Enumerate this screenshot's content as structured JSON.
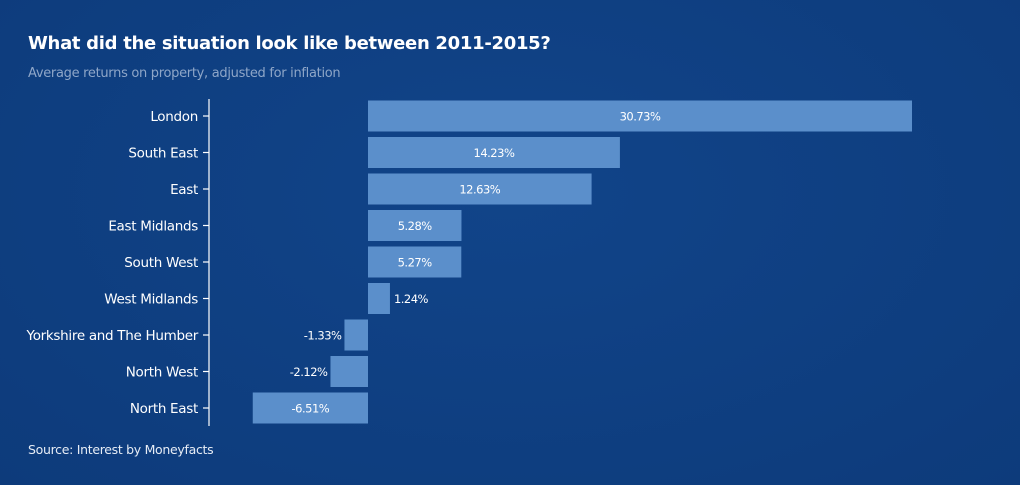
{
  "chart_data": {
    "type": "bar",
    "orientation": "horizontal",
    "title": "What did the situation look like between 2011-2015?",
    "subtitle": "Average returns on property, adjusted for inflation",
    "source": "Source: Interest by Moneyfacts",
    "categories": [
      "London",
      "South East",
      "East",
      "East Midlands",
      "South West",
      "West Midlands",
      "Yorkshire and The Humber",
      "North West",
      "North East"
    ],
    "values": [
      30.73,
      14.23,
      12.63,
      5.28,
      5.27,
      1.24,
      -1.33,
      -2.12,
      -6.51
    ],
    "data_labels": [
      "30.73%",
      "14.23%",
      "12.63%",
      "5.28%",
      "5.27%",
      "1.24%",
      "-1.33%",
      "-2.12%",
      "-6.51%"
    ],
    "xlim": [
      -8.6,
      31
    ],
    "grid": false,
    "colors": {
      "bar": "#5b8fcb",
      "background": "#0f3f82"
    }
  }
}
